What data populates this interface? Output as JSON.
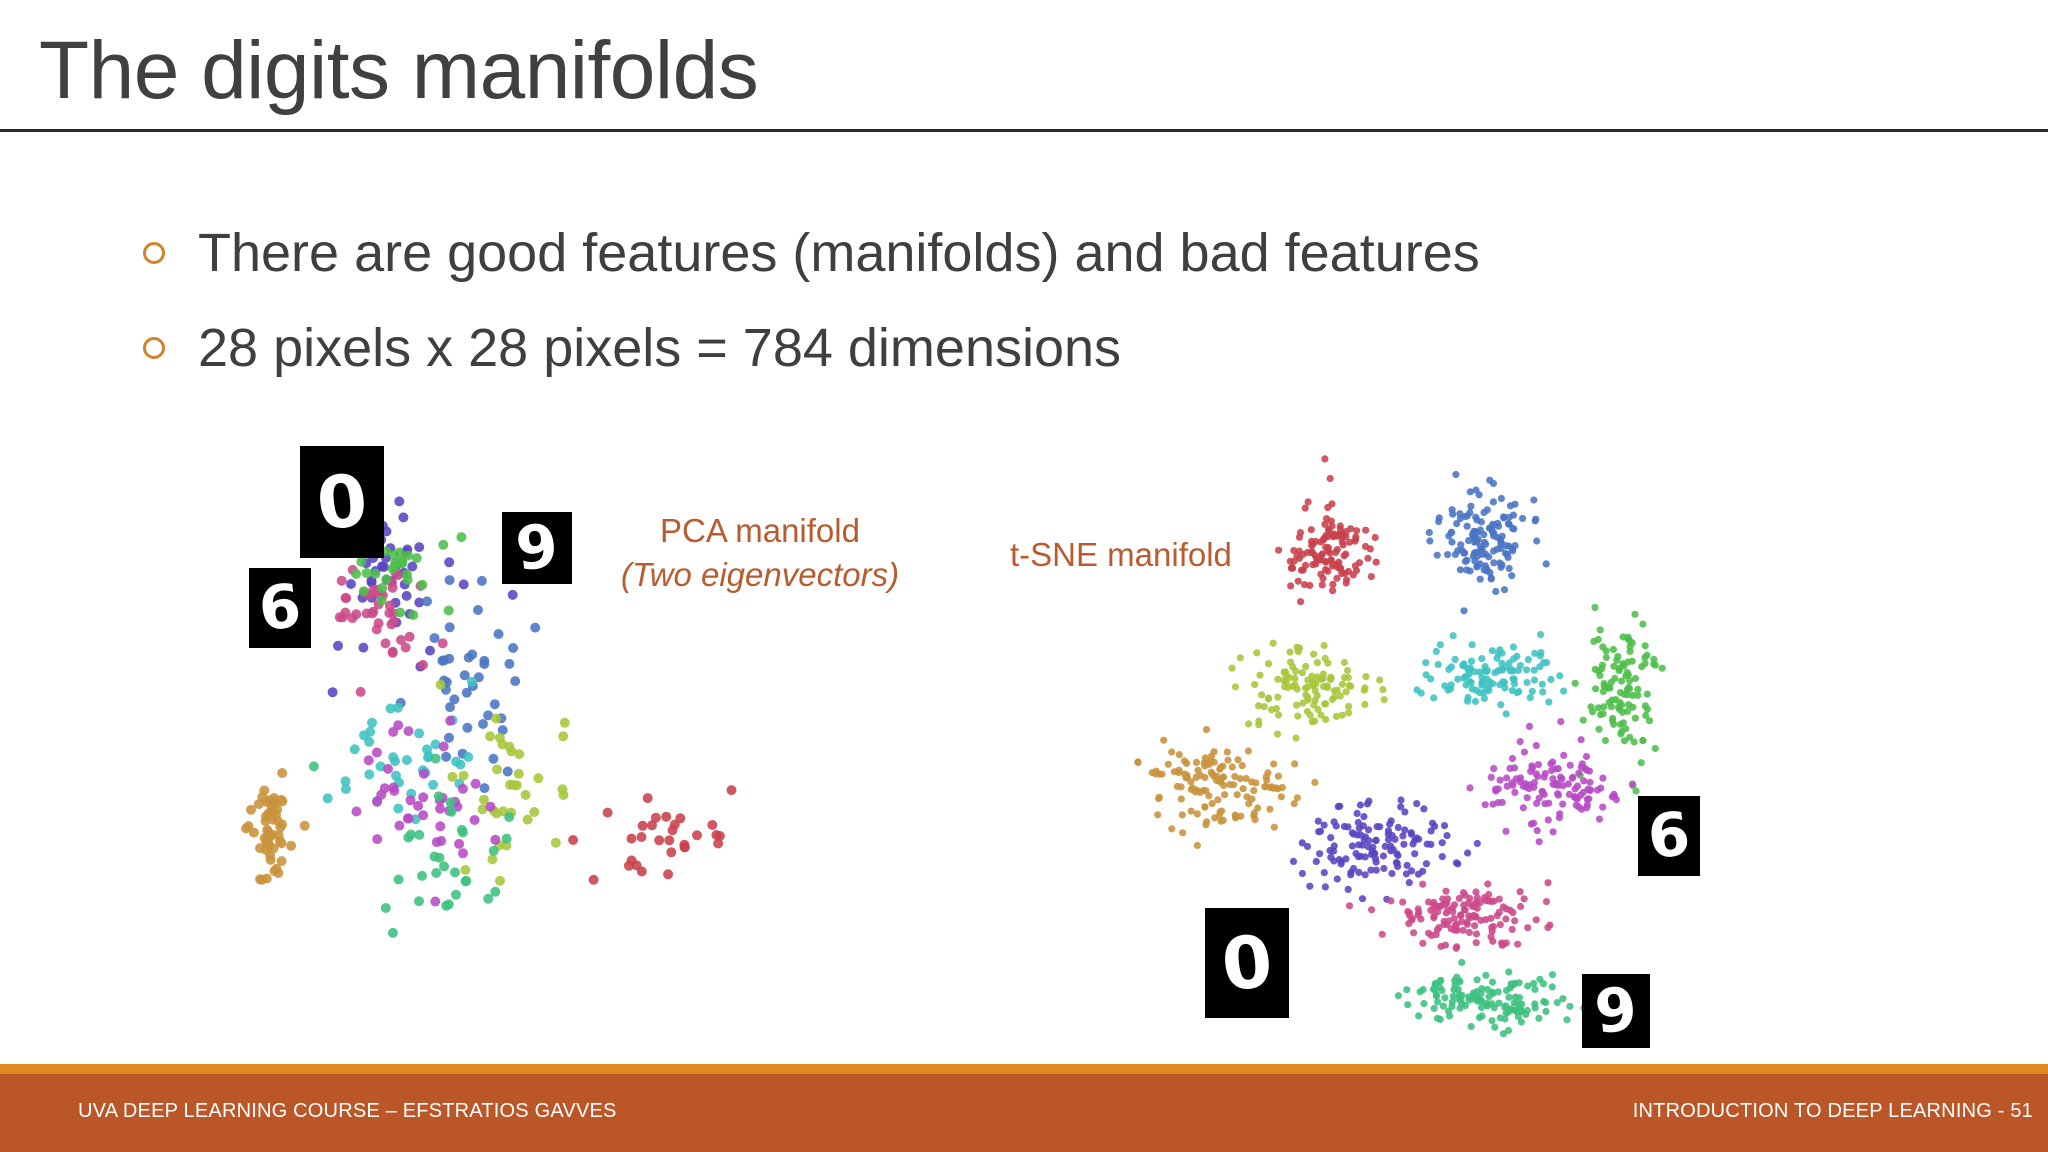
{
  "slide": {
    "title": "The digits manifolds",
    "bullets": [
      "There are good features (manifolds) and bad features",
      "28 pixels x 28 pixels = 784 dimensions"
    ]
  },
  "figures": {
    "pca": {
      "caption": "PCA manifold",
      "subcaption": "(Two eigenvectors)",
      "digit_thumbnails": [
        "0",
        "9",
        "6"
      ]
    },
    "tsne": {
      "caption": "t-SNE manifold",
      "digit_thumbnails": [
        "6",
        "0",
        "9"
      ]
    },
    "palette": {
      "red": "#c8414c",
      "blue": "#4a74c4",
      "teal": "#3fc2c2",
      "green": "#4dbe4a",
      "lime": "#a6c63a",
      "magenta": "#b64ac4",
      "purple": "#5a44c2",
      "pink": "#cc4a8a",
      "sea": "#3ec080",
      "orange": "#c8933c"
    }
  },
  "footer": {
    "left": "UVA DEEP LEARNING COURSE – EFSTRATIOS GAVVES",
    "right": "INTRODUCTION TO DEEP LEARNING - 51"
  },
  "colors": {
    "accent_orange": "#e08a24",
    "footer_bg": "#bb5629",
    "caption": "#b85c2f"
  }
}
